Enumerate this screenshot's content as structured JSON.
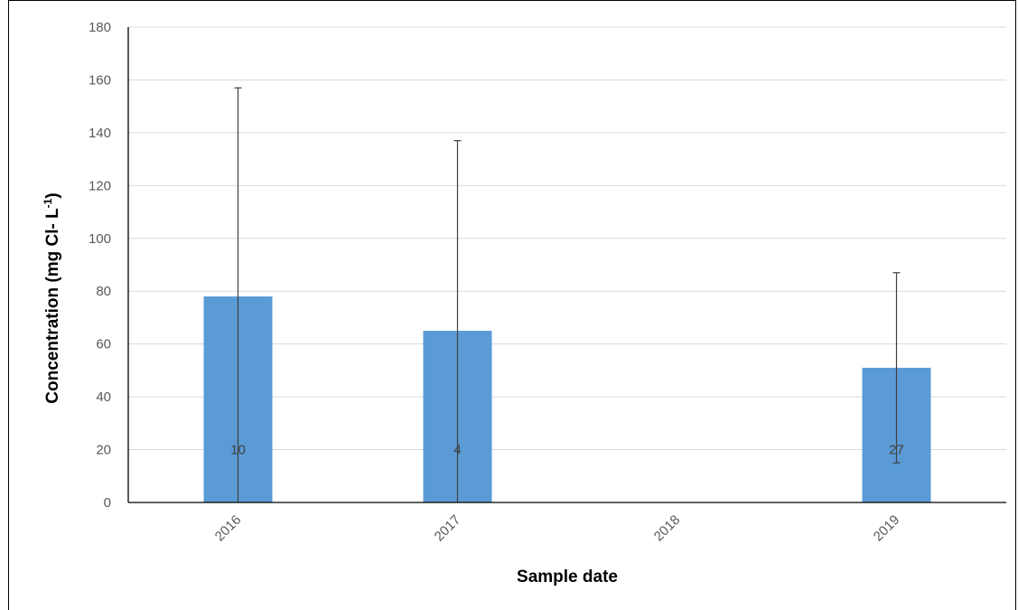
{
  "chart_data": {
    "type": "bar",
    "xlabel": "Sample date",
    "ylabel": {
      "main": "Concentration (mg Cl- L",
      "sup": "-1",
      "close": ")"
    },
    "categories": [
      "2016",
      "2017",
      "2018",
      "2019"
    ],
    "values": [
      78,
      65,
      null,
      51
    ],
    "error_high": [
      157,
      137,
      null,
      87
    ],
    "error_low": [
      0,
      0,
      null,
      15
    ],
    "data_labels": [
      "10",
      "4",
      "",
      "27"
    ],
    "ylim": [
      0,
      180
    ],
    "yticks": [
      0,
      20,
      40,
      60,
      80,
      100,
      120,
      140,
      160,
      180
    ],
    "grid": true,
    "bar_color": "#5b9bd5",
    "grid_color": "#d9d9d9",
    "error_color": "#404040"
  }
}
